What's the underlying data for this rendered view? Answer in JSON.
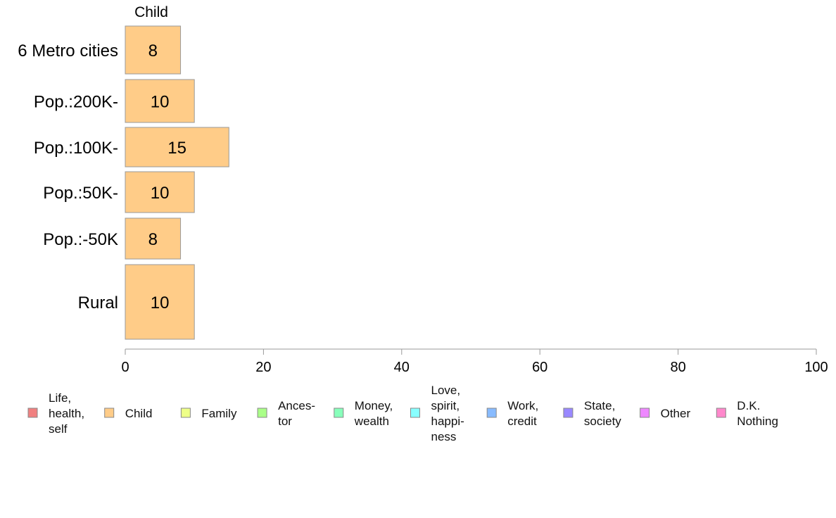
{
  "chart_data": {
    "type": "bar",
    "orientation": "horizontal",
    "series_header": "Child",
    "categories": [
      "6 Metro cities",
      "Pop.:200K-",
      "Pop.:100K-",
      "Pop.:50K-",
      "Pop.:-50K",
      "Rural"
    ],
    "series": [
      {
        "name": "Child",
        "values": [
          8,
          10,
          15,
          10,
          8,
          10
        ],
        "color": "#FFCC88"
      }
    ],
    "xlim": [
      0,
      100
    ],
    "x_ticks": [
      0,
      20,
      40,
      60,
      80,
      100
    ],
    "grid": false,
    "legend_position": "bottom",
    "legend": [
      {
        "label": "Life,\nhealth,\nself",
        "color": "#F08080"
      },
      {
        "label": "Child",
        "color": "#FFCC88"
      },
      {
        "label": "Family",
        "color": "#EEFF88"
      },
      {
        "label": "Ances-\ntor",
        "color": "#AAFF88"
      },
      {
        "label": "Money,\nwealth",
        "color": "#88FFBB"
      },
      {
        "label": "Love,\nspirit,\nhappi-\nness",
        "color": "#88FFFF"
      },
      {
        "label": "Work,\ncredit",
        "color": "#88BBFF"
      },
      {
        "label": "State,\nsociety",
        "color": "#9988FF"
      },
      {
        "label": "Other",
        "color": "#EE88FF"
      },
      {
        "label": "D.K.\nNothing",
        "color": "#FF88CC"
      }
    ]
  }
}
